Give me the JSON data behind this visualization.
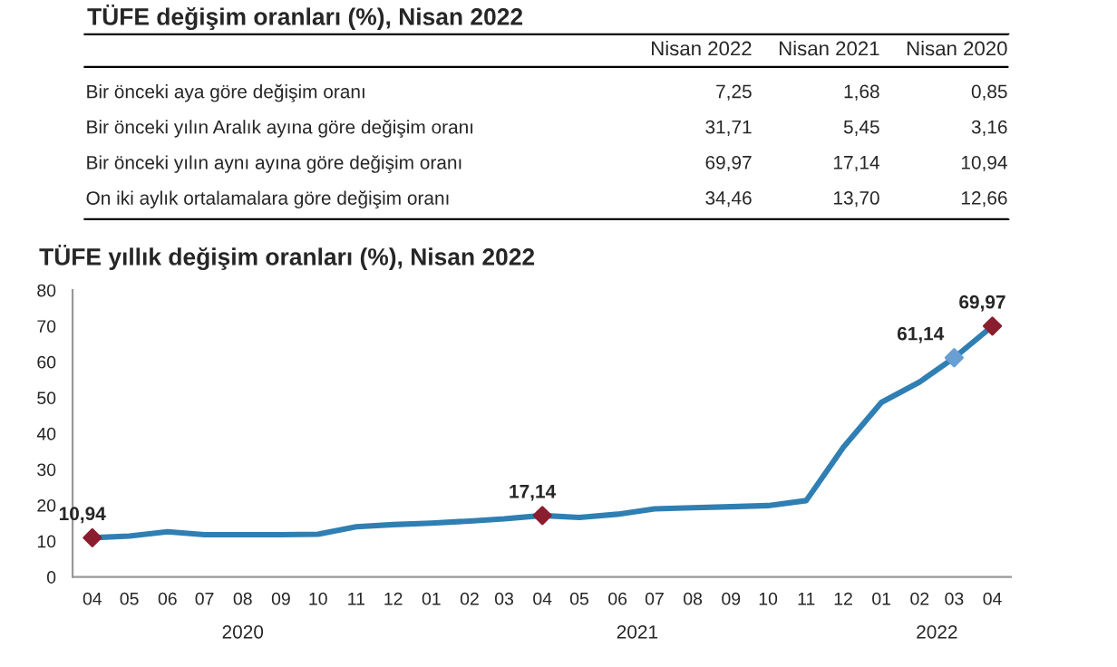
{
  "chart_data": [
    {
      "type": "other",
      "title": "TÜFE değişim oranları (%), Nisan 2022",
      "categories": [
        "Nisan 2022",
        "Nisan 2021",
        "Nisan 2020"
      ],
      "y_categories": [
        "Bir önceki aya göre değişim oranı",
        "Bir önceki yılın Aralık ayına göre değişim oranı",
        "Bir önceki yılın aynı ayına göre değişim oranı",
        "On iki aylık ortalamalara göre değişim oranı"
      ],
      "cell_labels": [
        [
          "7,25",
          "1,68",
          "0,85"
        ],
        [
          "31,71",
          "5,45",
          "3,16"
        ],
        [
          "69,97",
          "17,14",
          "10,94"
        ],
        [
          "34,46",
          "13,70",
          "12,66"
        ]
      ]
    },
    {
      "type": "line",
      "title": "TÜFE yıllık değişim oranları (%), Nisan 2022",
      "x": [
        "2020-04",
        "2020-05",
        "2020-06",
        "2020-07",
        "2020-08",
        "2020-09",
        "2020-10",
        "2020-11",
        "2020-12",
        "2021-01",
        "2021-02",
        "2021-03",
        "2021-04",
        "2021-05",
        "2021-06",
        "2021-07",
        "2021-08",
        "2021-09",
        "2021-10",
        "2021-11",
        "2021-12",
        "2022-01",
        "2022-02",
        "2022-03",
        "2022-04"
      ],
      "series": [
        {
          "type": "line",
          "color": "#2f7fb3",
          "marker": "none",
          "values": [
            10.94,
            11.4,
            12.6,
            11.8,
            11.8,
            11.8,
            11.9,
            14.0,
            14.6,
            15.0,
            15.6,
            16.2,
            17.14,
            16.6,
            17.5,
            19.0,
            19.3,
            19.6,
            19.9,
            21.3,
            36.1,
            48.7,
            54.4,
            61.14,
            69.97
          ]
        },
        {
          "type": "scatter",
          "marker": "diamond",
          "colors": [
            "#8b1e2e",
            null,
            null,
            null,
            null,
            null,
            null,
            null,
            null,
            null,
            null,
            null,
            "#8b1e2e",
            null,
            null,
            null,
            null,
            null,
            null,
            null,
            null,
            null,
            null,
            "#6a9fd4",
            "#8b1e2e"
          ],
          "values": [
            10.94,
            null,
            null,
            null,
            null,
            null,
            null,
            null,
            null,
            null,
            null,
            null,
            17.14,
            null,
            null,
            null,
            null,
            null,
            null,
            null,
            null,
            null,
            null,
            61.14,
            69.97
          ]
        }
      ],
      "xlim": [
        "2020-03-16",
        "2022-04-16"
      ],
      "xticks": [
        {
          "value": "2020-04",
          "label": "04"
        },
        {
          "value": "2020-05",
          "label": "05"
        },
        {
          "value": "2020-06",
          "label": "06"
        },
        {
          "value": "2020-07",
          "label": "07"
        },
        {
          "value": "2020-08",
          "label": "08"
        },
        {
          "value": "2020-09",
          "label": "09"
        },
        {
          "value": "2020-10",
          "label": "10"
        },
        {
          "value": "2020-11",
          "label": "11"
        },
        {
          "value": "2020-12",
          "label": "12"
        },
        {
          "value": "2021-01",
          "label": "01"
        },
        {
          "value": "2021-02",
          "label": "02"
        },
        {
          "value": "2021-03",
          "label": "03"
        },
        {
          "value": "2021-04",
          "label": "04"
        },
        {
          "value": "2021-05",
          "label": "05"
        },
        {
          "value": "2021-06",
          "label": "06"
        },
        {
          "value": "2021-07",
          "label": "07"
        },
        {
          "value": "2021-08",
          "label": "08"
        },
        {
          "value": "2021-09",
          "label": "09"
        },
        {
          "value": "2021-10",
          "label": "10"
        },
        {
          "value": "2021-11",
          "label": "11"
        },
        {
          "value": "2021-12",
          "label": "12"
        },
        {
          "value": "2022-01",
          "label": "01"
        },
        {
          "value": "2022-02",
          "label": "02"
        },
        {
          "value": "2022-03",
          "label": "03"
        },
        {
          "value": "2022-04",
          "label": "04"
        }
      ],
      "ylim": [
        0,
        80
      ],
      "yticks": [
        0,
        10,
        20,
        30,
        40,
        50,
        60,
        70,
        80
      ],
      "grid": false,
      "legend": false,
      "annotations": [
        {
          "text": "10,94",
          "x": "2020-04",
          "y": 10.94
        },
        {
          "text": "17,14",
          "x": "2021-04",
          "y": 17.14
        },
        {
          "text": "61,14",
          "x": "2022-03",
          "y": 61.14
        },
        {
          "text": "69,97",
          "x": "2022-04",
          "y": 69.97
        },
        "2020",
        "2021",
        "2022"
      ]
    }
  ]
}
